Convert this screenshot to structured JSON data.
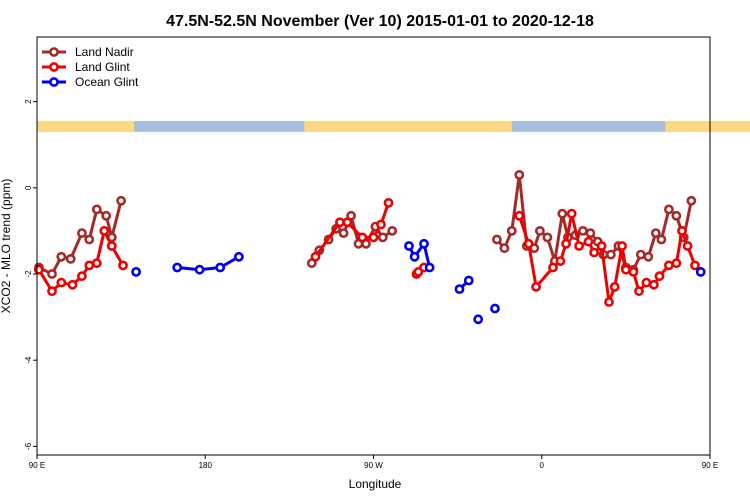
{
  "chart_data": {
    "type": "line",
    "title": "47.5N-52.5N November (Ver 10)   2015-01-01 to 2020-12-18",
    "xlabel": "Longitude",
    "ylabel": "XCO2 - MLO trend (ppm)",
    "xlim": [
      90,
      450
    ],
    "ylim": [
      -6.2,
      3.5
    ],
    "x_ticks": [
      {
        "value": 90,
        "label": "90 E"
      },
      {
        "value": 180,
        "label": "180"
      },
      {
        "value": 270,
        "label": "90 W"
      },
      {
        "value": 360,
        "label": "0"
      },
      {
        "value": 450,
        "label": "90 E"
      },
      {
        "value": 540,
        "label": "180"
      }
    ],
    "y_ticks": [
      {
        "value": 2,
        "label": "2"
      },
      {
        "value": 0,
        "label": "0"
      },
      {
        "value": -2,
        "label": "-2"
      },
      {
        "value": -4,
        "label": "-4"
      },
      {
        "value": -6,
        "label": "-6"
      }
    ],
    "legend_position": "top-left",
    "land_ocean_strip": {
      "y_range": [
        1.3,
        1.55
      ],
      "land_color": "#fcd882",
      "ocean_color": "#a7bedd",
      "land_segments": [
        [
          90,
          142
        ],
        [
          233,
          344
        ],
        [
          426,
          475
        ]
      ]
    },
    "series": [
      {
        "name": "Land Nadir",
        "color": "#a52a2a",
        "segments": [
          [
            [
              91,
              -1.85
            ],
            [
              98,
              -2.0
            ],
            [
              103,
              -1.6
            ],
            [
              108,
              -1.65
            ],
            [
              114,
              -1.05
            ],
            [
              118,
              -1.2
            ],
            [
              122,
              -0.5
            ],
            [
              127,
              -0.65
            ],
            [
              130,
              -1.15
            ],
            [
              135,
              -0.3
            ]
          ],
          [
            [
              237,
              -1.75
            ],
            [
              241,
              -1.45
            ],
            [
              246,
              -1.2
            ],
            [
              250,
              -0.95
            ],
            [
              254,
              -1.05
            ],
            [
              258,
              -0.65
            ],
            [
              262,
              -1.3
            ],
            [
              266,
              -1.3
            ],
            [
              271,
              -0.9
            ],
            [
              275,
              -1.15
            ],
            [
              280,
              -1.0
            ]
          ],
          [
            [
              336,
              -1.2
            ],
            [
              340,
              -1.4
            ],
            [
              344,
              -1.0
            ],
            [
              348,
              0.3
            ],
            [
              352,
              -1.35
            ],
            [
              356,
              -1.4
            ],
            [
              359,
              -1.0
            ],
            [
              363,
              -1.15
            ],
            [
              367,
              -1.7
            ],
            [
              371,
              -0.6
            ],
            [
              374,
              -1.15
            ],
            [
              378,
              -1.1
            ],
            [
              382,
              -1.0
            ],
            [
              386,
              -1.05
            ],
            [
              390,
              -1.25
            ],
            [
              393,
              -1.55
            ],
            [
              397,
              -1.55
            ],
            [
              401,
              -1.35
            ],
            [
              405,
              -1.85
            ],
            [
              409,
              -1.9
            ],
            [
              413,
              -1.55
            ],
            [
              417,
              -1.6
            ],
            [
              421,
              -1.05
            ],
            [
              424,
              -1.2
            ],
            [
              428,
              -0.5
            ],
            [
              432,
              -0.65
            ],
            [
              436,
              -1.15
            ],
            [
              440,
              -0.3
            ]
          ]
        ]
      },
      {
        "name": "Land Glint",
        "color": "#ee0000",
        "segments": [
          [
            [
              91,
              -1.9
            ],
            [
              98,
              -2.4
            ],
            [
              103,
              -2.2
            ],
            [
              109,
              -2.25
            ],
            [
              114,
              -2.05
            ],
            [
              118,
              -1.8
            ],
            [
              122,
              -1.75
            ],
            [
              126,
              -1.0
            ],
            [
              130,
              -1.35
            ],
            [
              136,
              -1.8
            ]
          ],
          [
            [
              239,
              -1.6
            ],
            [
              252,
              -0.8
            ],
            [
              256,
              -0.8
            ],
            [
              264,
              -1.15
            ],
            [
              270,
              -1.15
            ],
            [
              274,
              -0.85
            ],
            [
              278,
              -0.35
            ]
          ],
          [
            [
              293,
              -2.0
            ],
            [
              294,
              -1.95
            ],
            [
              297,
              -1.85
            ]
          ],
          [
            [
              348,
              -0.65
            ],
            [
              353,
              -1.3
            ],
            [
              357,
              -2.3
            ],
            [
              366,
              -1.85
            ],
            [
              370,
              -1.7
            ],
            [
              373,
              -1.3
            ],
            [
              376,
              -0.6
            ],
            [
              380,
              -1.35
            ],
            [
              385,
              -1.25
            ],
            [
              388,
              -1.5
            ],
            [
              392,
              -1.35
            ],
            [
              396,
              -2.65
            ],
            [
              399,
              -2.3
            ],
            [
              403,
              -1.35
            ],
            [
              405,
              -1.9
            ],
            [
              409,
              -1.95
            ],
            [
              412,
              -2.4
            ],
            [
              416,
              -2.2
            ],
            [
              420,
              -2.25
            ],
            [
              423,
              -2.05
            ],
            [
              428,
              -1.8
            ],
            [
              432,
              -1.75
            ],
            [
              435,
              -1.0
            ],
            [
              438,
              -1.35
            ],
            [
              442,
              -1.8
            ]
          ]
        ]
      },
      {
        "name": "Ocean Glint",
        "color": "#0000ee",
        "segments": [
          [
            [
              143,
              -1.95
            ]
          ],
          [
            [
              165,
              -1.85
            ],
            [
              177,
              -1.9
            ],
            [
              188,
              -1.85
            ],
            [
              198,
              -1.6
            ]
          ],
          [
            [
              289,
              -1.35
            ],
            [
              292,
              -1.6
            ],
            [
              297,
              -1.3
            ],
            [
              300,
              -1.85
            ]
          ],
          [
            [
              316,
              -2.35
            ],
            [
              321,
              -2.15
            ]
          ],
          [
            [
              326,
              -3.05
            ]
          ],
          [
            [
              335,
              -2.8
            ]
          ],
          [
            [
              445,
              -1.95
            ]
          ]
        ]
      }
    ]
  }
}
